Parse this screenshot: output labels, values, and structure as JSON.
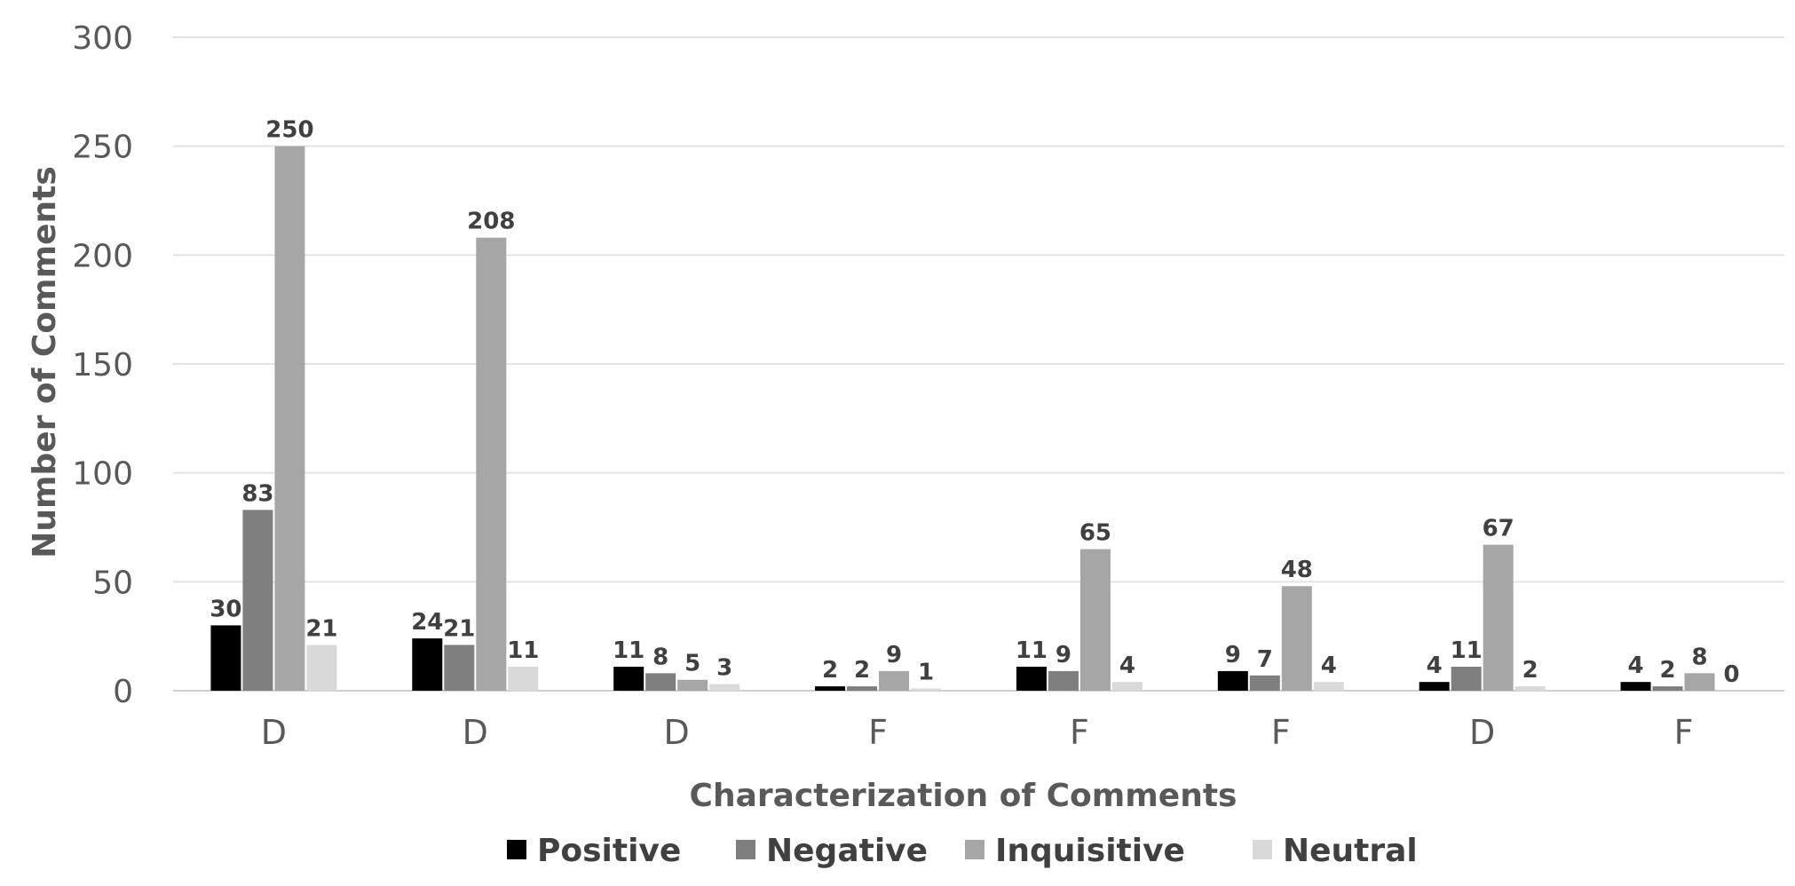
{
  "chart_data": {
    "type": "bar",
    "title": "",
    "xlabel": "Characterization of Comments",
    "ylabel": "Number of Comments",
    "ylim": [
      0,
      300
    ],
    "yticks": [
      0,
      50,
      100,
      150,
      200,
      250,
      300
    ],
    "grid": true,
    "legend": "bottom",
    "categories": [
      "D",
      "D",
      "D",
      "F",
      "F",
      "F",
      "D",
      "F"
    ],
    "series": [
      {
        "name": "Positive",
        "color": "#000000",
        "values": [
          30,
          24,
          11,
          2,
          11,
          9,
          4,
          4
        ]
      },
      {
        "name": "Negative",
        "color": "#7f7f7f",
        "values": [
          83,
          21,
          8,
          2,
          9,
          7,
          11,
          2
        ]
      },
      {
        "name": "Inquisitive",
        "color": "#a6a6a6",
        "values": [
          250,
          208,
          5,
          9,
          65,
          48,
          67,
          8
        ]
      },
      {
        "name": "Neutral",
        "color": "#d9d9d9",
        "values": [
          21,
          11,
          3,
          1,
          4,
          4,
          2,
          0
        ]
      }
    ]
  }
}
